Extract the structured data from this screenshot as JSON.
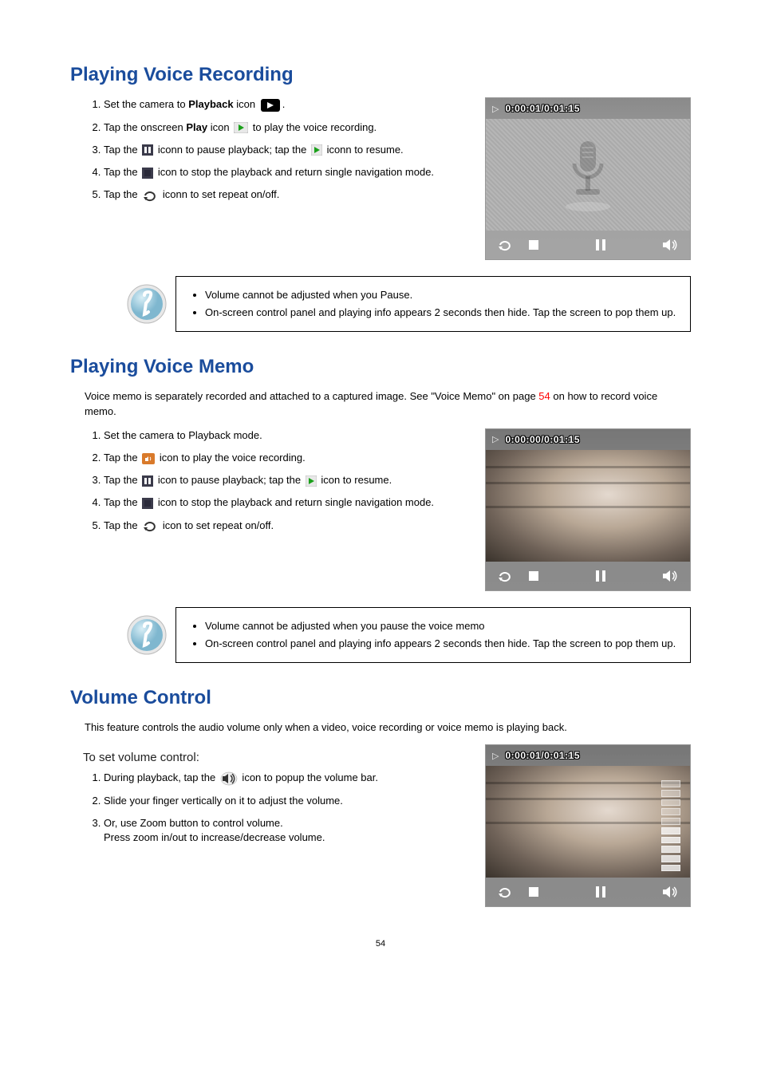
{
  "page_number": "54",
  "colors": {
    "heading": "#1a4c9c",
    "link": "#ff0000"
  },
  "section1": {
    "heading": "Playing Voice Recording",
    "steps": {
      "s1_a": "Set the camera to ",
      "s1_b": "Playback",
      "s1_c": " icon ",
      "s1_d": ".",
      "s2_a": "Tap the onscreen ",
      "s2_b": "Play",
      "s2_c": " icon ",
      "s2_d": " to play the voice recording.",
      "s3_a": "Tap the ",
      "s3_b": " iconn to pause playback; tap the ",
      "s3_c": " iconn to resume.",
      "s4_a": "Tap the ",
      "s4_b": " icon to stop the playback and return single navigation mode.",
      "s5_a": "Tap the ",
      "s5_b": " iconn to set repeat on/off."
    },
    "screenshot": {
      "timestamp": "0:00:01/0:01:15"
    },
    "note": {
      "b1": "Volume cannot be adjusted when you Pause.",
      "b2": "On-screen control panel and playing info appears 2 seconds then hide. Tap the screen to pop them up."
    }
  },
  "section2": {
    "heading": "Playing Voice Memo",
    "intro_a": "Voice memo is separately recorded and attached to a captured image. See \"Voice Memo\" on page ",
    "intro_link": "54",
    "intro_b": " on how to record voice memo.",
    "steps": {
      "s1": "Set the camera to Playback mode.",
      "s2_a": "Tap the ",
      "s2_b": " icon to play the voice recording.",
      "s3_a": "Tap the ",
      "s3_b": " icon to pause playback; tap the ",
      "s3_c": " icon to resume.",
      "s4_a": "Tap the ",
      "s4_b": " icon to stop the playback and return single navigation mode.",
      "s5_a": "Tap the ",
      "s5_b": " icon to set repeat on/off."
    },
    "screenshot": {
      "timestamp": "0:00:00/0:01:15"
    },
    "note": {
      "b1": "Volume cannot be adjusted when you pause the voice memo",
      "b2": "On-screen control panel and playing info appears 2 seconds then hide. Tap the screen to pop them up."
    }
  },
  "section3": {
    "heading": "Volume Control",
    "intro": "This feature controls the audio volume only when a video, voice recording or voice memo is playing back.",
    "subheading": "To set volume control:",
    "steps": {
      "s1_a": "During playback, tap the ",
      "s1_b": " icon to popup the volume bar.",
      "s2": "Slide your finger vertically on it to adjust the volume.",
      "s3_a": "Or, use Zoom button to control volume.",
      "s3_b": "Press zoom in/out to increase/decrease volume."
    },
    "screenshot": {
      "timestamp": "0:00:01/0:01:15",
      "lit_bars": 5,
      "total_bars": 10
    }
  }
}
